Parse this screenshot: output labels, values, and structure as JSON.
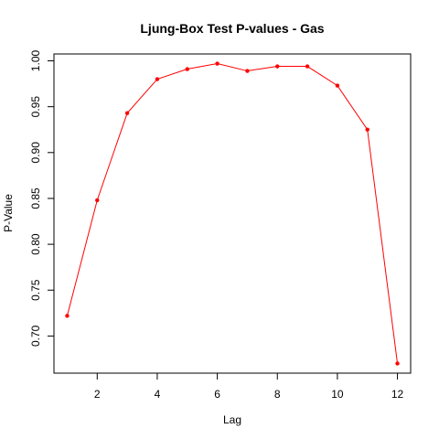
{
  "chart_data": {
    "type": "line",
    "title": "Ljung-Box Test P-values - Gas",
    "xlabel": "Lag",
    "ylabel": "P-Value",
    "x": [
      1,
      2,
      3,
      4,
      5,
      6,
      7,
      8,
      9,
      10,
      11,
      12
    ],
    "series": [
      {
        "values": [
          0.722,
          0.848,
          0.943,
          0.98,
          0.991,
          0.997,
          0.989,
          0.994,
          0.994,
          0.973,
          0.925,
          0.67
        ],
        "color": "#ff0000"
      }
    ],
    "xticks": [
      "2",
      "4",
      "6",
      "8",
      "10",
      "12"
    ],
    "yticks": [
      "0.70",
      "0.75",
      "0.80",
      "0.85",
      "0.90",
      "0.95",
      "1.00"
    ],
    "xlim": [
      0.56,
      12.44
    ],
    "ylim": [
      0.6595,
      1.0075
    ],
    "grid": false,
    "legend": "none"
  }
}
